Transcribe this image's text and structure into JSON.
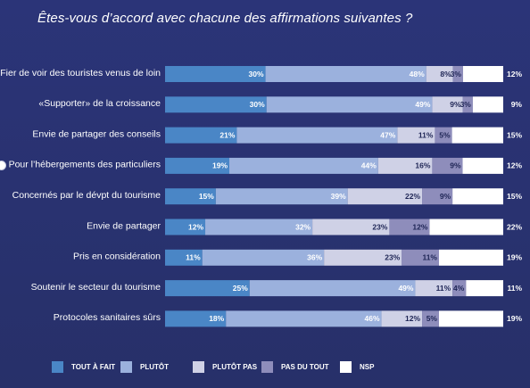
{
  "title": "Êtes-vous d’accord avec chacune des affirmations suivantes ?",
  "chart_data": {
    "type": "bar",
    "orientation": "horizontal",
    "stacked": true,
    "title": "Êtes-vous d’accord avec chacune des affirmations suivantes ?",
    "categories": [
      "Fier de voir des touristes venus de loin",
      "«Supporter» de la croissance",
      "Envie de partager des conseils",
      "Pour l’hébergements des particuliers",
      "Concernés par le dévpt du tourisme",
      "Envie de partager",
      "Pris en considération",
      "Soutenir le secteur du tourisme",
      "Protocoles sanitaires sûrs"
    ],
    "series": [
      {
        "name": "TOUT À FAIT",
        "color": "#4a86c6",
        "label_color": "#ffffff",
        "values": [
          30,
          30,
          21,
          19,
          15,
          12,
          11,
          25,
          18
        ]
      },
      {
        "name": "PLUTÔT",
        "color": "#9bb1dd",
        "label_color": "#ffffff",
        "values": [
          48,
          49,
          47,
          44,
          39,
          32,
          36,
          49,
          46
        ]
      },
      {
        "name": "PLUTÔT PAS",
        "color": "#cfd1e6",
        "label_color": "#1e2555",
        "values": [
          8,
          9,
          11,
          16,
          22,
          23,
          23,
          11,
          12
        ]
      },
      {
        "name": "PAS DU TOUT",
        "color": "#8e8dbb",
        "label_color": "#1e2555",
        "values": [
          3,
          3,
          5,
          9,
          9,
          12,
          11,
          4,
          5
        ]
      },
      {
        "name": "NSP",
        "color": "#ffffff",
        "label_color": "#ffffff",
        "values": [
          12,
          9,
          15,
          12,
          15,
          22,
          19,
          11,
          19
        ]
      }
    ],
    "value_suffix": "%",
    "legend_position": "bottom",
    "grid": false
  }
}
